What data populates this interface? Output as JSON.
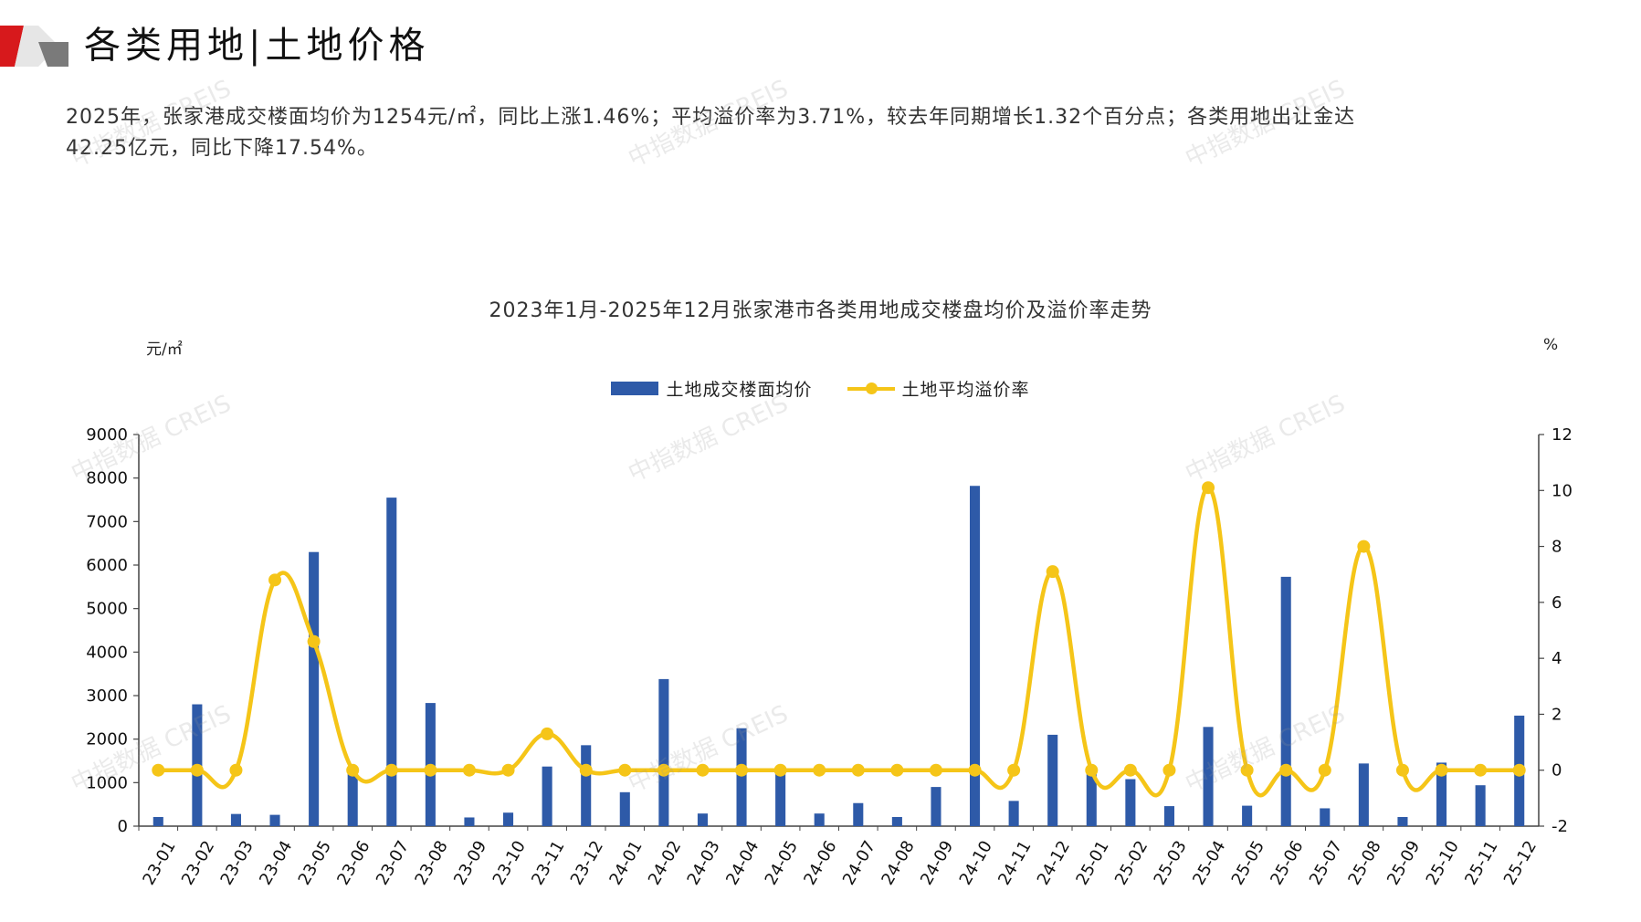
{
  "header": {
    "title": "各类用地|土地价格"
  },
  "summary": {
    "line1": "2025年，张家港成交楼面均价为1254元/㎡，同比上涨1.46%；平均溢价率为3.71%，较去年同期增长1.32个百分点；各类用地出让金达",
    "line2": "42.25亿元，同比下降17.54%。"
  },
  "watermark": "中指数据 CREIS",
  "colors": {
    "bar": "#2e5aa8",
    "line": "#f5c518",
    "accent": "#d7191c"
  },
  "chart_data": {
    "type": "bar",
    "title": "2023年1月-2025年12月张家港市各类用地成交楼盘均价及溢价率走势",
    "y_unit_left": "元/㎡",
    "y_unit_right": "%",
    "ylim_left": [
      0,
      9000
    ],
    "yticks_left": [
      0,
      1000,
      2000,
      3000,
      4000,
      5000,
      6000,
      7000,
      8000,
      9000
    ],
    "ylim_right": [
      -2,
      12
    ],
    "yticks_right": [
      -2,
      0,
      2,
      4,
      6,
      8,
      10,
      12
    ],
    "legend_position": "top-center",
    "grid": false,
    "categories": [
      "23-01",
      "23-02",
      "23-03",
      "23-04",
      "23-05",
      "23-06",
      "23-07",
      "23-08",
      "23-09",
      "23-10",
      "23-11",
      "23-12",
      "24-01",
      "24-02",
      "24-03",
      "24-04",
      "24-05",
      "24-06",
      "24-07",
      "24-08",
      "24-09",
      "24-10",
      "24-11",
      "24-12",
      "25-01",
      "25-02",
      "25-03",
      "25-04",
      "25-05",
      "25-06",
      "25-07",
      "25-08",
      "25-09",
      "25-10",
      "25-11",
      "25-12"
    ],
    "series": [
      {
        "name": "土地成交楼面均价",
        "type": "bar",
        "axis": "left",
        "values": [
          210,
          2800,
          280,
          260,
          6300,
          1200,
          7550,
          2830,
          200,
          310,
          1370,
          1860,
          780,
          3380,
          290,
          2250,
          1240,
          290,
          530,
          210,
          900,
          7820,
          580,
          2100,
          1240,
          1080,
          460,
          2280,
          470,
          5730,
          410,
          1440,
          210,
          1460,
          940,
          2540
        ]
      },
      {
        "name": "土地平均溢价率",
        "type": "line",
        "axis": "right",
        "values": [
          0,
          0,
          0,
          6.8,
          4.6,
          0,
          0,
          0,
          0,
          0,
          1.3,
          0,
          0,
          0,
          0,
          0,
          0,
          0,
          0,
          0,
          0,
          0,
          0,
          7.1,
          0,
          0,
          0,
          10.1,
          0,
          0,
          0,
          8.0,
          0,
          0,
          0,
          0
        ]
      }
    ]
  }
}
